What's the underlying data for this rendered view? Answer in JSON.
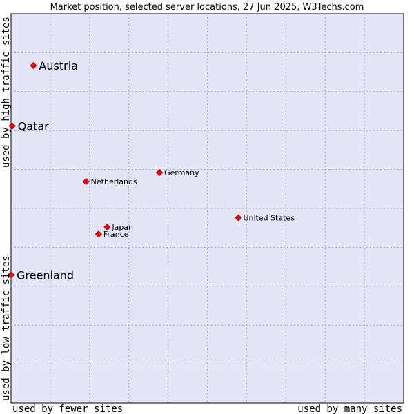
{
  "chart_data": {
    "type": "scatter",
    "title": "Market position, selected server locations, 27 Jun 2025, W3Techs.com",
    "xlabel_left": "used by fewer sites",
    "xlabel_right": "used by many sites",
    "ylabel_top": "used by high traffic sites",
    "ylabel_bottom": "used by low traffic sites",
    "xlim": [
      0,
      100
    ],
    "ylim": [
      0,
      100
    ],
    "grid": true,
    "points": [
      {
        "name": "Austria",
        "x": 5.7,
        "y": 86.7,
        "size": "large"
      },
      {
        "name": "Qatar",
        "x": 0.3,
        "y": 71.2,
        "size": "large"
      },
      {
        "name": "Germany",
        "x": 37.8,
        "y": 59.2,
        "size": "small"
      },
      {
        "name": "Netherlands",
        "x": 19.1,
        "y": 56.9,
        "size": "small"
      },
      {
        "name": "United States",
        "x": 57.9,
        "y": 47.6,
        "size": "small"
      },
      {
        "name": "Japan",
        "x": 24.5,
        "y": 45.2,
        "size": "small"
      },
      {
        "name": "France",
        "x": 22.3,
        "y": 43.4,
        "size": "small"
      },
      {
        "name": "Greenland",
        "x": 0.0,
        "y": 32.9,
        "size": "large"
      }
    ]
  }
}
